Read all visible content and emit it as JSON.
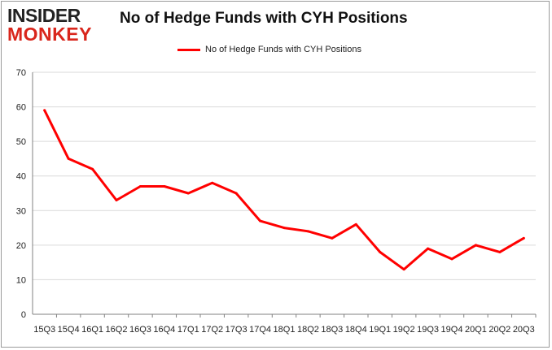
{
  "brand": {
    "line1": "INSIDER",
    "line2": "MONKEY"
  },
  "colors": {
    "series": "#ff0000",
    "grid": "#d9d9d9",
    "axis": "#808080",
    "logo_top": "#222222",
    "logo_bottom": "#d9261c"
  },
  "chart_data": {
    "type": "line",
    "title": "No of Hedge Funds with CYH Positions",
    "xlabel": "",
    "ylabel": "",
    "ylim": [
      0,
      70
    ],
    "yticks": [
      0,
      10,
      20,
      30,
      40,
      50,
      60,
      70
    ],
    "grid": true,
    "legend_position": "top-center",
    "categories": [
      "2015Q3",
      "2015Q4",
      "2016Q1",
      "2016Q2",
      "2016Q3",
      "2016Q4",
      "2017Q1",
      "2017Q2",
      "2017Q3",
      "2017Q4",
      "2018Q1",
      "2018Q2",
      "2018Q3",
      "2018Q4",
      "2019Q1",
      "2019Q2",
      "2019Q3",
      "2019Q4",
      "2020Q1",
      "2020Q2",
      "2020Q3"
    ],
    "category_labels": [
      "15Q3",
      "15Q4",
      "16Q1",
      "16Q2",
      "16Q3",
      "16Q4",
      "17Q1",
      "17Q2",
      "17Q3",
      "17Q4",
      "18Q1",
      "18Q2",
      "18Q3",
      "18Q4",
      "19Q1",
      "19Q2",
      "19Q3",
      "19Q4",
      "20Q1",
      "20Q2",
      "20Q3"
    ],
    "series": [
      {
        "name": "No of Hedge Funds with CYH Positions",
        "values": [
          59,
          45,
          42,
          33,
          37,
          37,
          35,
          38,
          35,
          27,
          25,
          24,
          22,
          26,
          18,
          13,
          19,
          16,
          20,
          18,
          22
        ]
      }
    ]
  }
}
